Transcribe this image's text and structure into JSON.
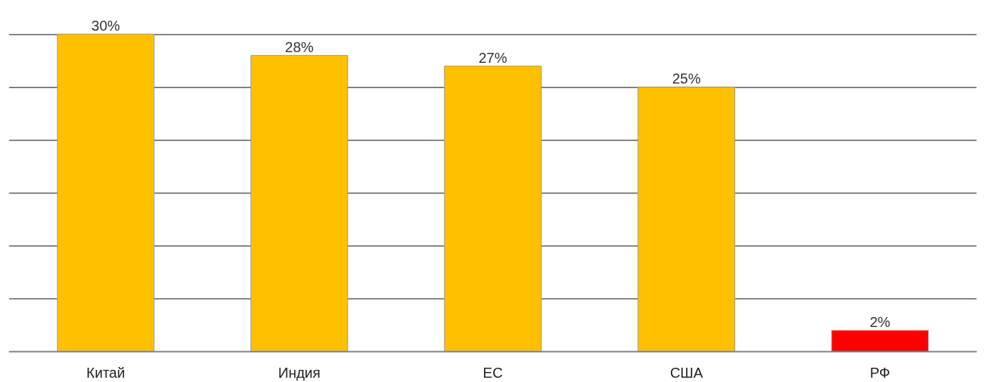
{
  "chart_data": {
    "type": "bar",
    "categories": [
      "Китай",
      "Индия",
      "ЕС",
      "США",
      "РФ"
    ],
    "values": [
      30,
      28,
      27,
      25,
      2
    ],
    "colors": [
      "#ffc000",
      "#ffc000",
      "#ffc000",
      "#ffc000",
      "#ff0000"
    ],
    "value_labels": [
      "30%",
      "28%",
      "27%",
      "25%",
      "2%"
    ],
    "grid": "y",
    "tick_labels": "x"
  }
}
